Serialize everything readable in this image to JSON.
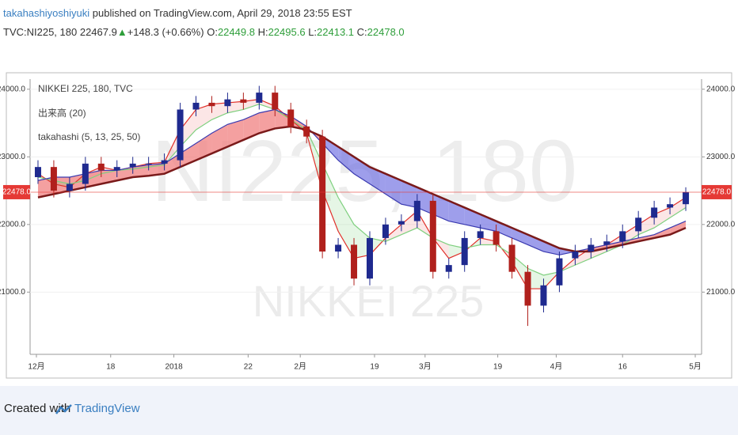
{
  "header": {
    "author": "takahashiyoshiyuki",
    "published": "published on TradingView.com, April 29, 2018 23:55 EST",
    "symbol": "TVC:NI225, 180",
    "price": "22467.9",
    "change": "+148.3 (+0.66%)",
    "ohlc": [
      {
        "label": "O:",
        "value": "22449.8"
      },
      {
        "label": "H:",
        "value": "22495.6"
      },
      {
        "label": "L:",
        "value": "22413.1"
      },
      {
        "label": "C:",
        "value": "22478.0"
      }
    ]
  },
  "chart_data": {
    "type": "candlestick",
    "legend": [
      "NIKKEI 225, 180, TVC",
      "出来高 (20)",
      "takahashi (5, 13, 25, 50)"
    ],
    "watermark": [
      "NI225, 180",
      "NIKKEI 225"
    ],
    "x": [
      1,
      3,
      5,
      7,
      9,
      11,
      13,
      15,
      17,
      19,
      21,
      23,
      25,
      27,
      29,
      31,
      33,
      35,
      37,
      39,
      41,
      43,
      45,
      47,
      49,
      51,
      53,
      55,
      57,
      59,
      61,
      63,
      65,
      67,
      69,
      71,
      73,
      75,
      77,
      79,
      81,
      83
    ],
    "open": [
      22700,
      22850,
      22500,
      22600,
      22900,
      22800,
      22850,
      22900,
      22900,
      22950,
      23700,
      23800,
      23750,
      23850,
      23800,
      23950,
      23700,
      23450,
      23300,
      21600,
      21700,
      21200,
      21800,
      22000,
      22050,
      22350,
      21300,
      21400,
      21800,
      21900,
      21700,
      21300,
      20800,
      21100,
      21500,
      21600,
      21700,
      21750,
      21900,
      22100,
      22250,
      22300
    ],
    "high": [
      22950,
      22950,
      22700,
      23000,
      23000,
      22950,
      23000,
      23000,
      23050,
      23800,
      23900,
      23900,
      23950,
      23950,
      24050,
      24050,
      23800,
      23550,
      23400,
      21800,
      21800,
      21900,
      22100,
      22150,
      22450,
      22450,
      21500,
      21900,
      22000,
      22000,
      21800,
      21400,
      21200,
      21600,
      21700,
      21800,
      21850,
      22000,
      22200,
      22350,
      22400,
      22550
    ],
    "low": [
      22600,
      22400,
      22400,
      22500,
      22700,
      22700,
      22750,
      22800,
      22800,
      22850,
      23600,
      23650,
      23650,
      23700,
      23700,
      23600,
      23350,
      23200,
      21500,
      21500,
      21100,
      21100,
      21700,
      21900,
      21950,
      21200,
      21200,
      21300,
      21700,
      21600,
      21200,
      20500,
      20700,
      21000,
      21400,
      21500,
      21600,
      21650,
      21800,
      22000,
      22150,
      22200
    ],
    "close": [
      22850,
      22500,
      22600,
      22900,
      22800,
      22850,
      22900,
      22900,
      22950,
      23700,
      23800,
      23750,
      23850,
      23800,
      23950,
      23700,
      23450,
      23300,
      21600,
      21700,
      21200,
      21800,
      22000,
      22050,
      22350,
      21300,
      21400,
      21800,
      21900,
      21700,
      21300,
      20800,
      21100,
      21500,
      21600,
      21700,
      21750,
      21900,
      22100,
      22250,
      22300,
      22478
    ],
    "up_color": "#1f2a8f",
    "down_color": "#b0201c",
    "series": [
      {
        "color": "#e0302a",
        "values": [
          22750,
          22600,
          22550,
          22750,
          22850,
          22800,
          22850,
          22900,
          22920,
          23400,
          23700,
          23780,
          23800,
          23820,
          23850,
          23750,
          23550,
          23350,
          22500,
          21900,
          21500,
          21550,
          21800,
          22000,
          22200,
          21800,
          21500,
          21600,
          21800,
          21750,
          21450,
          21050,
          21050,
          21300,
          21500,
          21650,
          21700,
          21850,
          22000,
          22150,
          22250,
          22400
        ]
      },
      {
        "color": "#7fd07f",
        "values": [
          22700,
          22650,
          22600,
          22650,
          22750,
          22800,
          22820,
          22850,
          22880,
          23150,
          23400,
          23550,
          23650,
          23700,
          23780,
          23700,
          23550,
          23400,
          22900,
          22400,
          22000,
          21800,
          21750,
          21850,
          21950,
          21800,
          21700,
          21650,
          21700,
          21700,
          21550,
          21350,
          21250,
          21300,
          21400,
          21500,
          21600,
          21700,
          21850,
          21950,
          22100,
          22250
        ]
      },
      {
        "color": "#3a3ab0",
        "values": [
          22650,
          22700,
          22700,
          22750,
          22800,
          22800,
          22850,
          22880,
          22900,
          23050,
          23200,
          23350,
          23480,
          23550,
          23650,
          23700,
          23600,
          23450,
          23200,
          22950,
          22750,
          22600,
          22450,
          22300,
          22250,
          22150,
          22050,
          22000,
          21950,
          21900,
          21800,
          21700,
          21600,
          21550,
          21600,
          21650,
          21700,
          21750,
          21800,
          21850,
          21950,
          22050
        ]
      },
      {
        "color": "#7a1a1a",
        "values": [
          22400,
          22450,
          22500,
          22550,
          22600,
          22650,
          22700,
          22720,
          22750,
          22850,
          22950,
          23050,
          23150,
          23250,
          23350,
          23420,
          23450,
          23400,
          23300,
          23150,
          23000,
          22850,
          22750,
          22650,
          22550,
          22450,
          22350,
          22250,
          22150,
          22050,
          21950,
          21850,
          21750,
          21650,
          21600,
          21600,
          21650,
          21700,
          21750,
          21800,
          21850,
          21950
        ]
      }
    ],
    "band_up_color": "#f08080",
    "band_down_color": "#6a6ae0",
    "last": {
      "value": 22478,
      "label": "22478.0"
    },
    "last_color": "#e53935",
    "xlim": [
      0,
      85
    ],
    "xticks": [
      {
        "value": 0.8,
        "label": "12月"
      },
      {
        "value": 10.2,
        "label": "18"
      },
      {
        "value": 18.2,
        "label": "2018"
      },
      {
        "value": 27.6,
        "label": "22"
      },
      {
        "value": 34.2,
        "label": "2月"
      },
      {
        "value": 43.6,
        "label": "19"
      },
      {
        "value": 50,
        "label": "3月"
      },
      {
        "value": 59.2,
        "label": "19"
      },
      {
        "value": 66.6,
        "label": "4月"
      },
      {
        "value": 75,
        "label": "16"
      },
      {
        "value": 84.2,
        "label": "5月"
      }
    ],
    "ylim": [
      20080,
      24150
    ],
    "yticks": [
      {
        "value": 21000,
        "label": "21000.0"
      },
      {
        "value": 22000,
        "label": "22000.0"
      },
      {
        "value": 23000,
        "label": "23000.0"
      },
      {
        "value": 24000,
        "label": "24000.0"
      }
    ],
    "grid": true
  },
  "footer": {
    "created": "Created with",
    "brand": "TradingView"
  }
}
